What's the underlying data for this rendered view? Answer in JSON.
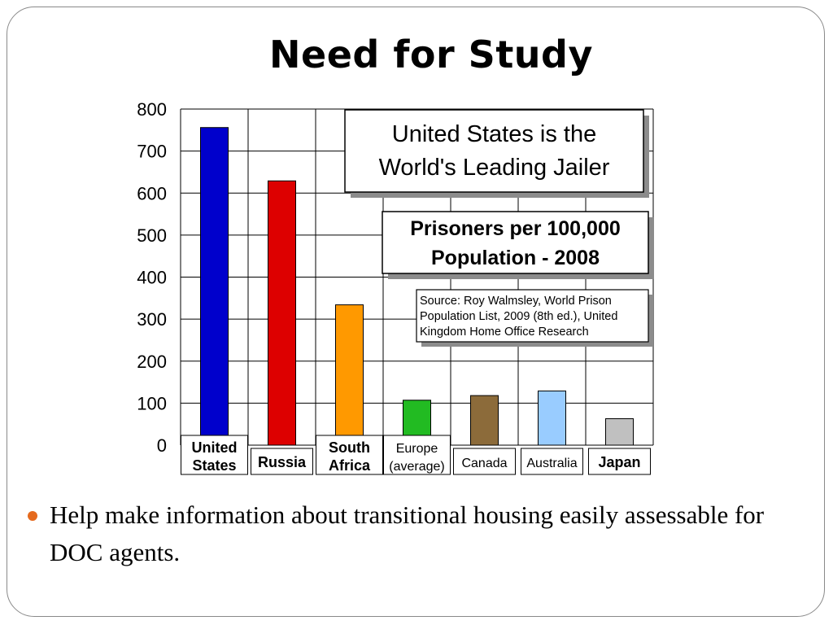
{
  "slide": {
    "title": "Need for Study",
    "bullet": "Help make information about transitional housing easily assessable for DOC agents."
  },
  "chart_data": {
    "type": "bar",
    "categories": [
      "United States",
      "Russia",
      "South Africa",
      "Europe (average)",
      "Canada",
      "Australia",
      "Japan"
    ],
    "category_lines": [
      [
        "United",
        "States"
      ],
      [
        "Russia"
      ],
      [
        "South",
        "Africa"
      ],
      [
        "Europe",
        "(average)"
      ],
      [
        "Canada"
      ],
      [
        "Australia"
      ],
      [
        "Japan"
      ]
    ],
    "values": [
      756,
      629,
      334,
      107,
      118,
      129,
      63
    ],
    "colors": [
      "#0000cc",
      "#dd0000",
      "#ff9900",
      "#22bb22",
      "#8c6b3a",
      "#99ccff",
      "#c0c0c0"
    ],
    "ylim": [
      0,
      800
    ],
    "yticks": [
      0,
      100,
      200,
      300,
      400,
      500,
      600,
      700,
      800
    ],
    "grid": true,
    "annotations": {
      "headline": [
        "United States is the",
        "World's Leading Jailer"
      ],
      "subtitle": [
        "Prisoners per 100,000",
        "Population - 2008"
      ],
      "source": [
        "Source: Roy Walmsley, World Prison",
        "Population List, 2009 (8th ed.), United",
        "Kingdom Home Office Research"
      ]
    }
  }
}
